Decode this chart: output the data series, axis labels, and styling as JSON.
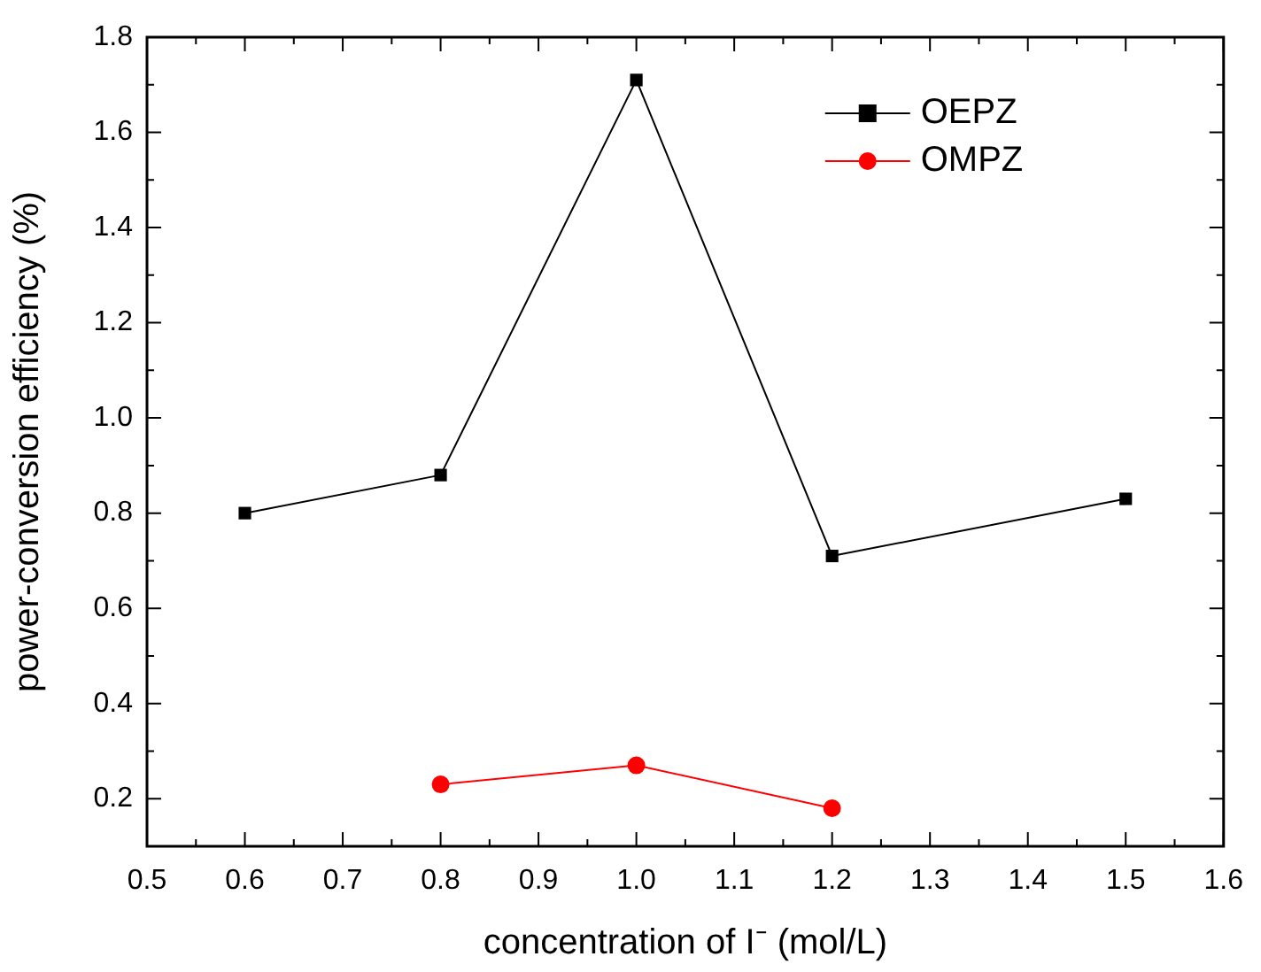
{
  "chart_data": {
    "type": "line",
    "xlabel": "concentration of I⁻ (mol/L)",
    "ylabel": "power-conversion efficiency (%)",
    "xlim": [
      0.5,
      1.6
    ],
    "xticks": [
      0.5,
      0.6,
      0.7,
      0.8,
      0.9,
      {
        "value": 1.0,
        "label": "1.0"
      },
      1.1,
      1.2,
      1.3,
      1.4,
      1.5,
      1.6
    ],
    "ylim": [
      0.1,
      1.8
    ],
    "yticks": [
      0.2,
      0.4,
      0.6,
      0.8,
      {
        "value": 1.0,
        "label": "1.0"
      },
      1.2,
      1.4,
      1.6,
      1.8
    ],
    "grid": false,
    "legend": "top right",
    "line_style": "solid",
    "series": [
      {
        "name": "OEPZ",
        "color": "#000000",
        "marker": "square",
        "x": [
          0.6,
          0.8,
          1.0,
          1.2,
          1.5
        ],
        "values": [
          0.8,
          0.88,
          1.71,
          0.71,
          0.83
        ]
      },
      {
        "name": "OMPZ",
        "color": "#ff0000",
        "marker": "circle",
        "x": [
          0.8,
          1.0,
          1.2
        ],
        "values": [
          0.23,
          0.27,
          0.18
        ]
      }
    ]
  }
}
